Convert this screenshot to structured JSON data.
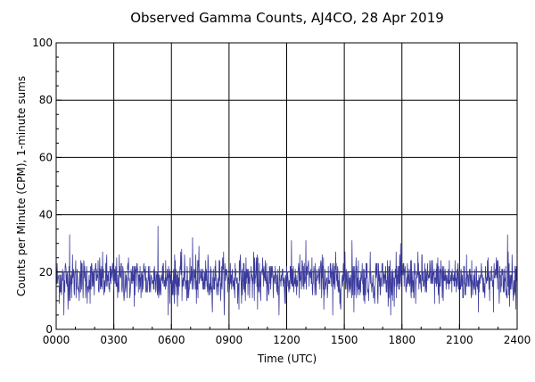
{
  "chart_data": {
    "type": "line",
    "title": "Observed Gamma Counts, AJ4CO, 28 Apr 2019",
    "xlabel": "Time (UTC)",
    "ylabel": "Counts per Minute (CPM), 1-minute sums",
    "xlim": [
      0,
      24
    ],
    "ylim": [
      0,
      100
    ],
    "x_ticks": [
      {
        "value": 0,
        "label": "0000"
      },
      {
        "value": 3,
        "label": "0300"
      },
      {
        "value": 6,
        "label": "0600"
      },
      {
        "value": 9,
        "label": "0900"
      },
      {
        "value": 12,
        "label": "1200"
      },
      {
        "value": 15,
        "label": "1500"
      },
      {
        "value": 18,
        "label": "1800"
      },
      {
        "value": 21,
        "label": "2100"
      },
      {
        "value": 24,
        "label": "2400"
      }
    ],
    "y_ticks": [
      {
        "value": 0,
        "label": "0"
      },
      {
        "value": 20,
        "label": "20"
      },
      {
        "value": 40,
        "label": "40"
      },
      {
        "value": 60,
        "label": "60"
      },
      {
        "value": 80,
        "label": "80"
      },
      {
        "value": 100,
        "label": "100"
      }
    ],
    "grid": true,
    "series": [
      {
        "color": "#3b3b9c",
        "x_start": 0,
        "x_step_minutes": 1,
        "points": 1440,
        "mean": 17.5,
        "min": 5,
        "max": 36,
        "notable_peaks": [
          {
            "x": 0.7,
            "y": 33
          },
          {
            "x": 5.3,
            "y": 36
          },
          {
            "x": 7.1,
            "y": 32
          },
          {
            "x": 13.0,
            "y": 31
          },
          {
            "x": 15.4,
            "y": 31
          },
          {
            "x": 23.5,
            "y": 33
          }
        ],
        "notable_dips": [
          {
            "x": 0.4,
            "y": 5
          },
          {
            "x": 11.6,
            "y": 5
          },
          {
            "x": 14.4,
            "y": 5
          }
        ]
      }
    ]
  }
}
